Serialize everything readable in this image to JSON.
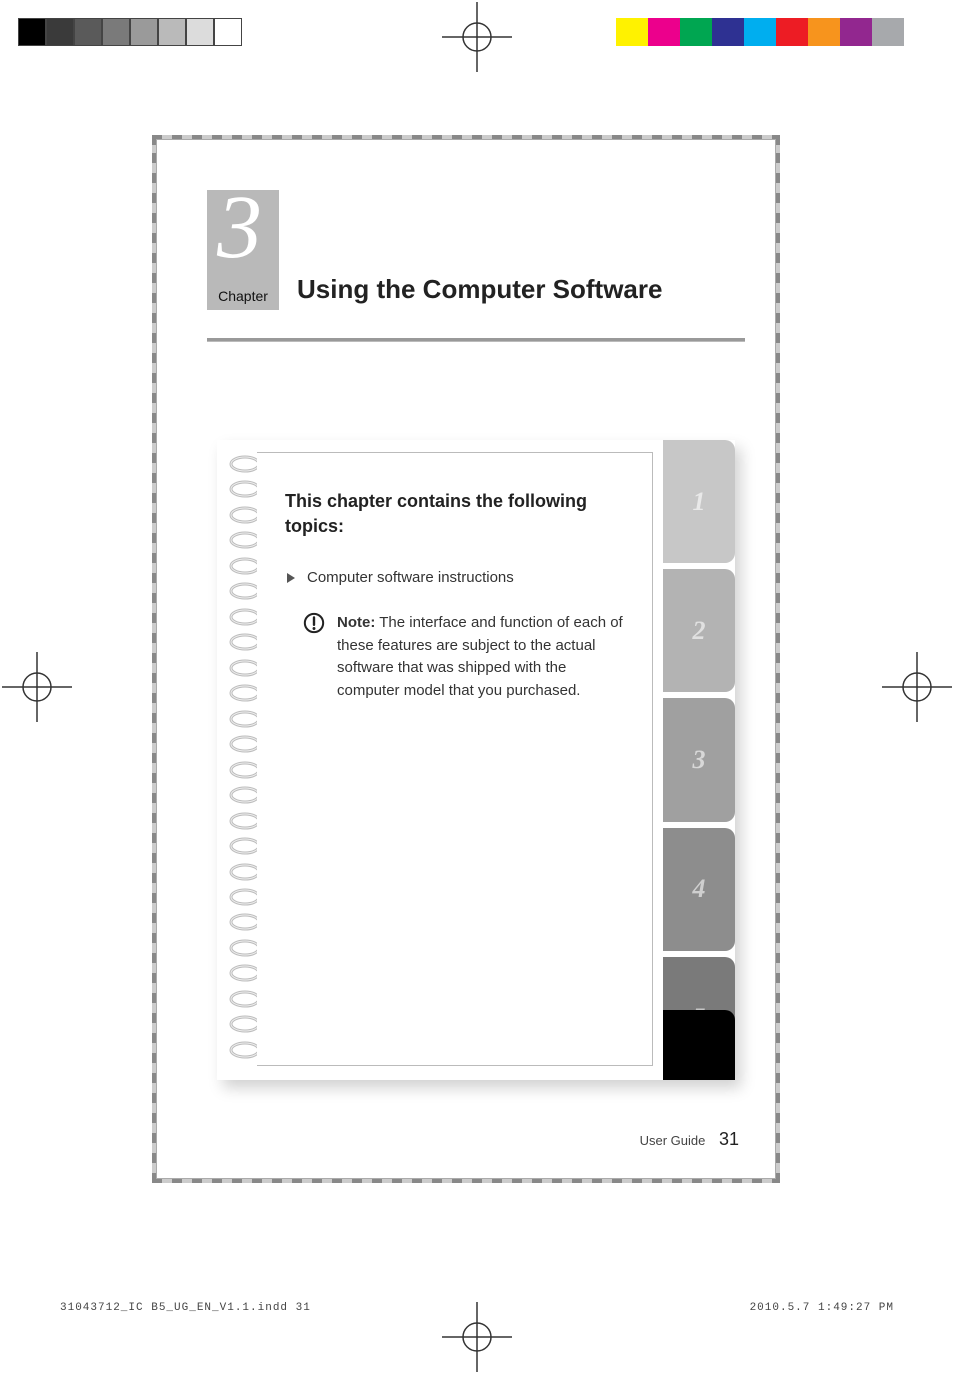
{
  "printbars": {
    "grays": [
      "#000000",
      "#3a3a3a",
      "#5a5a5a",
      "#7a7a7a",
      "#9a9a9a",
      "#bababa",
      "#dcdcdc",
      "#ffffff"
    ],
    "colors": [
      "#fff200",
      "#ec008c",
      "#00a651",
      "#2e3192",
      "#00aeef",
      "#ed1c24",
      "#f7941d",
      "#92278f",
      "#a7a9ac",
      "#ffffff"
    ]
  },
  "chapter": {
    "number": "3",
    "label": "Chapter",
    "title": "Using the Computer Software"
  },
  "card": {
    "heading": "This chapter contains the following topics:",
    "bullet": "Computer software instructions",
    "note_label": "Note:",
    "note_body": " The interface and function of each of these features are subject to the actual software that was shipped with the computer model that you purchased."
  },
  "tabs": [
    {
      "n": "1",
      "bg": "#c7c7c7",
      "fg": "#e9e9e9"
    },
    {
      "n": "2",
      "bg": "#b3b3b3",
      "fg": "#e0e0e0"
    },
    {
      "n": "3",
      "bg": "#a0a0a0",
      "fg": "#d8d8d8"
    },
    {
      "n": "4",
      "bg": "#8d8d8d",
      "fg": "#cfcfcf"
    },
    {
      "n": "5",
      "bg": "#7a7a7a",
      "fg": "#c6c6c6"
    }
  ],
  "footer": {
    "label": "User Guide",
    "page": "31"
  },
  "printfooter": {
    "left": "31043712_IC B5_UG_EN_V1.1.indd   31",
    "right": "2010.5.7   1:49:27 PM"
  },
  "style": {
    "spiral_count": 24
  }
}
